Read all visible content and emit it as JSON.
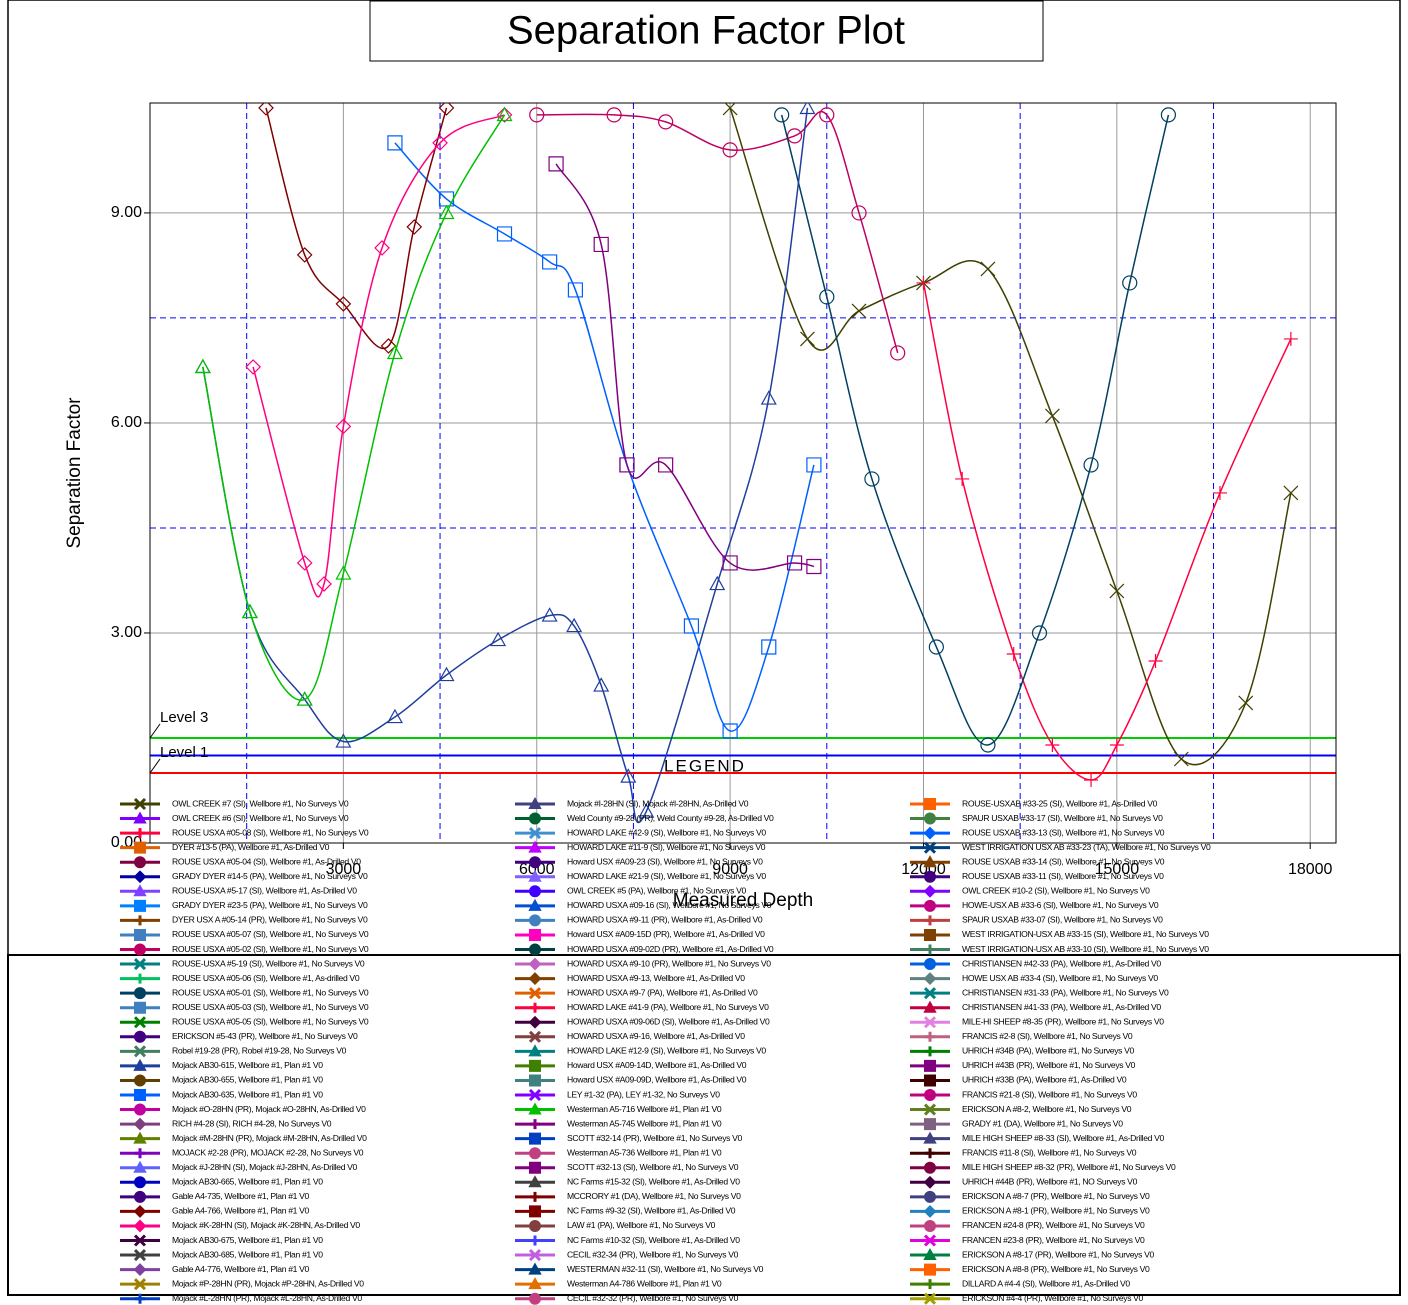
{
  "chart_data": {
    "type": "line",
    "title": "Separation Factor Plot",
    "xlabel": "Measured Depth",
    "ylabel": "Separation Factor",
    "legend_title": "LEGEND",
    "xlim": [
      0,
      18400
    ],
    "ylim": [
      0,
      10.57
    ],
    "xticks": [
      3000,
      6000,
      9000,
      12000,
      15000,
      18000
    ],
    "minor_xticks": [
      1500,
      4500,
      7500,
      10500,
      13500,
      16500
    ],
    "yticks": [
      {
        "value": 0,
        "label": "0.00"
      },
      {
        "value": 3,
        "label": "3.00"
      },
      {
        "value": 6,
        "label": "6.00"
      },
      {
        "value": 9,
        "label": "9.00"
      }
    ],
    "grid": true,
    "hlines": [
      {
        "value": 7.5,
        "color": "#0000ff",
        "dashed": true
      },
      {
        "value": 4.5,
        "color": "#0000ff",
        "dashed": true
      },
      {
        "value": 1.25,
        "color": "#0000ff",
        "dashed": false
      }
    ],
    "levels": [
      {
        "name": "Level 3",
        "value": 1.5,
        "color": "#00cc00"
      },
      {
        "name": "Level 1",
        "value": 1,
        "color": "#ff0000"
      }
    ],
    "series": [
      {
        "name": "OWL CREEK #7 (SI), Wellbore #1, No Surveys V0",
        "color": "#404000",
        "marker": "x",
        "x": [
          9000,
          10200,
          11000,
          12000,
          13000,
          14000,
          15000,
          16000,
          17000,
          17700
        ],
        "values": [
          10.5,
          7.2,
          7.6,
          8.0,
          8.2,
          6.1,
          3.6,
          1.2,
          2.0,
          5.0
        ]
      },
      {
        "name": "OWL CREEK #6 (SI), Wellbore #1, No Surveys V0",
        "color": "#8000ff",
        "marker": "triangle"
      },
      {
        "name": "ROUSE USXA #05-08 (SI), Wellbore #1, No Surveys V0",
        "color": "#ff0040",
        "marker": "plus",
        "x": [
          12000,
          12600,
          13400,
          14000,
          14600,
          15000,
          15600,
          16600,
          17700
        ],
        "values": [
          8.0,
          5.2,
          2.7,
          1.4,
          0.9,
          1.4,
          2.6,
          5.0,
          7.2
        ]
      },
      {
        "name": "DYER #13-5 (PA), Wellbore #1, As-Drilled V0",
        "color": "#e06000",
        "marker": "square"
      },
      {
        "name": "ROUSE USXA #05-04 (SI), Wellbore #1, As-Drilled V0",
        "color": "#800040",
        "marker": "circle"
      },
      {
        "name": "GRADY DYER #14-5 (PA), Wellbore #1, No Surveys V0",
        "color": "#0000a0",
        "marker": "diamond"
      },
      {
        "name": "ROUSE-USXA #5-17 (SI), Wellbore #1, As-Drilled V0",
        "color": "#8040ff",
        "marker": "triangle"
      },
      {
        "name": "GRADY DYER #23-5 (PA), Wellbore #1, No Surveys V0",
        "color": "#0080ff",
        "marker": "square"
      },
      {
        "name": "DYER USX A #05-14 (PR), Wellbore #1, No Surveys V0",
        "color": "#804000",
        "marker": "plus"
      },
      {
        "name": "ROUSE USXA #05-07 (SI), Wellbore #1, No Surveys V0",
        "color": "#4080c0",
        "marker": "square"
      },
      {
        "name": "ROUSE USXA #05-02 (SI), Wellbore #1, No Surveys V0",
        "color": "#c00060",
        "marker": "circle",
        "x": [
          6000,
          7200,
          8000,
          9000,
          10000,
          10500,
          11000,
          11600
        ],
        "values": [
          10.4,
          10.4,
          10.3,
          9.9,
          10.1,
          10.4,
          9.0,
          7.0
        ]
      },
      {
        "name": "ROUSE-USXA #5-19 (SI), Wellbore #1, No Surveys V0",
        "color": "#008080",
        "marker": "x"
      },
      {
        "name": "ROUSE USXA #05-06 (SI), Wellbore #1, As-drilled V0",
        "color": "#00c060",
        "marker": "plus"
      },
      {
        "name": "ROUSE USXA #05-01 (SI), Wellbore #1, No Surveys V0",
        "color": "#004060",
        "marker": "circle",
        "x": [
          9800,
          10500,
          11200,
          12200,
          13000,
          13800,
          14600,
          15200,
          15800
        ],
        "values": [
          10.4,
          7.8,
          5.2,
          2.8,
          1.4,
          3.0,
          5.4,
          8.0,
          10.4
        ]
      },
      {
        "name": "ROUSE USXA #05-03 (SI), Wellbore #1, No Surveys V0",
        "color": "#4080c0",
        "marker": "square"
      },
      {
        "name": "ROUSE USXA #05-05 (SI), Wellbore #1, No Surveys V0",
        "color": "#008000",
        "marker": "x"
      },
      {
        "name": "ERICKSON #5-43 (PR), Wellbore #1, No Surveys V0",
        "color": "#400080",
        "marker": "circle"
      },
      {
        "name": "Robel #19-28 (PR), Robel #19-28, No Surveys V0",
        "color": "#408060",
        "marker": "x"
      },
      {
        "name": "Mojack AB30-615, Wellbore #1, Plan #1 V0",
        "color": "#1f3f9f",
        "marker": "triangle",
        "x": [
          820,
          1550,
          2400,
          3000,
          3800,
          4600,
          5400,
          6200,
          6580,
          7000,
          7420,
          7700,
          8800,
          9600,
          10200
        ],
        "values": [
          6.8,
          3.3,
          2.05,
          1.45,
          1.8,
          2.4,
          2.9,
          3.25,
          3.1,
          2.25,
          0.95,
          0.45,
          3.7,
          6.35,
          10.5
        ]
      },
      {
        "name": "Mojack AB30-655, Wellbore #1, Plan #1 V0",
        "color": "#604000",
        "marker": "circle"
      },
      {
        "name": "Mojack AB30-635, Wellbore #1, Plan #1 V0",
        "color": "#0060ff",
        "marker": "square",
        "x": [
          3800,
          4600,
          5500,
          6200,
          6600,
          7400,
          8400,
          9000,
          9600,
          10300
        ],
        "values": [
          10.0,
          9.2,
          8.7,
          8.3,
          7.9,
          5.4,
          3.1,
          1.6,
          2.8,
          5.4
        ]
      },
      {
        "name": "Mojack #O-28HN (PR), Mojack #O-28HN, As-Drilled V0",
        "color": "#c000a0",
        "marker": "circle"
      },
      {
        "name": "RICH #4-28 (SI), RICH #4-28, No Surveys V0",
        "color": "#804080",
        "marker": "diamond"
      },
      {
        "name": "Mojack #M-28HN (PR), Mojack #M-28HN, As-Drilled V0",
        "color": "#608000",
        "marker": "triangle"
      },
      {
        "name": "MOJACK #2-28 (PR), MOJACK #2-28, No Surveys V0",
        "color": "#8000c0",
        "marker": "plus"
      },
      {
        "name": "Mojack #J-28HN (SI), Mojack #J-28HN, As-Drilled V0",
        "color": "#6060ff",
        "marker": "triangle"
      },
      {
        "name": "Mojack AB30-665, Wellbore #1, Plan #1 V0",
        "color": "#0000c0",
        "marker": "circle"
      },
      {
        "name": "Gable A4-735, Wellbore #1, Plan #1 V0",
        "color": "#400080",
        "marker": "circle"
      },
      {
        "name": "Gable A4-766, Wellbore #1, Plan #1 V0",
        "color": "#800000",
        "marker": "diamond",
        "x": [
          1800,
          2400,
          3000,
          3700,
          4100,
          4600
        ],
        "values": [
          10.5,
          8.4,
          7.7,
          7.1,
          8.8,
          10.5
        ]
      },
      {
        "name": "Mojack #K-28HN (SI), Mojack #K-28HN, As-Drilled V0",
        "color": "#ff0080",
        "marker": "diamond",
        "x": [
          1600,
          2400,
          2700,
          3000,
          3600,
          4500,
          5500
        ],
        "values": [
          6.8,
          4.0,
          3.7,
          5.95,
          8.5,
          10.0,
          10.4
        ]
      },
      {
        "name": "Mojack AB30-675, Wellbore #1, Plan #1 V0",
        "color": "#400040",
        "marker": "x"
      },
      {
        "name": "Mojack AB30-685, Wellbore #1, Plan #1 V0",
        "color": "#404040",
        "marker": "x"
      },
      {
        "name": "Gable A4-776, Wellbore #1, Plan #1 V0",
        "color": "#8040a0",
        "marker": "diamond"
      },
      {
        "name": "Mojack #P-28HN (PR), Mojack #P-28HN, As-Drilled V0",
        "color": "#a08000",
        "marker": "x"
      },
      {
        "name": "Mojack #L-28HN (PR), Mojack #L-28HN, As-Drilled V0",
        "color": "#0040c0",
        "marker": "plus"
      },
      {
        "name": "Mojack #I-28HN (SI), Mojack #I-28HN, As-Drilled V0",
        "color": "#404080",
        "marker": "triangle"
      },
      {
        "name": "Weld County #9-28 (PR), Weld County #9-28, As-Drilled V0",
        "color": "#006030",
        "marker": "circle"
      },
      {
        "name": "HOWARD LAKE #42-9 (SI), Wellbore #1, No Surveys V0",
        "color": "#4090d0",
        "marker": "x"
      },
      {
        "name": "HOWARD LAKE #11-9 (SI), Wellbore #1, No Surveys V0",
        "color": "#c000ff",
        "marker": "triangle"
      },
      {
        "name": "Howard USX #A09-23 (SI), Wellbore #1, No Surveys V0",
        "color": "#400080",
        "marker": "circle"
      },
      {
        "name": "HOWARD LAKE #21-9 (SI), Wellbore #1, No Surveys V0",
        "color": "#8060ff",
        "marker": "triangle"
      },
      {
        "name": "OWL CREEK #5 (PA), Wellbore #1, No Surveys V0",
        "color": "#4000ff",
        "marker": "circle"
      },
      {
        "name": "HOWARD USXA #09-16 (SI), Wellbore #1, No Surveys V0",
        "color": "#0050d0",
        "marker": "triangle"
      },
      {
        "name": "HOWARD USXA #9-11 (PR), Wellbore #1, As-Drilled V0",
        "color": "#4080c0",
        "marker": "circle"
      },
      {
        "name": "Howard USX #A09-15D (PR), Wellbore #1, As-Drilled V0",
        "color": "#ff00c0",
        "marker": "square"
      },
      {
        "name": "HOWARD USXA #09-02D (PR), Wellbore #1, As-Drilled V0",
        "color": "#004040",
        "marker": "circle"
      },
      {
        "name": "HOWARD USXA #9-10 (PR), Wellbore #1, No Surveys V0",
        "color": "#c060c0",
        "marker": "diamond"
      },
      {
        "name": "HOWARD USXA #9-13, Wellbore #1, As-Drilled V0",
        "color": "#804000",
        "marker": "diamond"
      },
      {
        "name": "HOWARD USXA #9-7 (PA), Wellbore #1, As-Drilled V0",
        "color": "#e06000",
        "marker": "x"
      },
      {
        "name": "HOWARD LAKE #41-9 (PA), Wellbore #1, No Surveys V0",
        "color": "#ff0040",
        "marker": "plus"
      },
      {
        "name": "HOWARD USXA #09-06D (SI), Wellbore #1, As-Drilled V0",
        "color": "#400040",
        "marker": "diamond"
      },
      {
        "name": "HOWARD USXA #9-16, Wellbore #1, As-Drilled V0",
        "color": "#804040",
        "marker": "x"
      },
      {
        "name": "HOWARD LAKE #12-9 (SI), Wellbore #1, No Surveys V0",
        "color": "#008080",
        "marker": "triangle"
      },
      {
        "name": "Howard USX #A09-14D, Wellbore #1, As-Drilled V0",
        "color": "#408000",
        "marker": "square"
      },
      {
        "name": "Howard USX #A09-09D, Wellbore #1, As-Drilled V0",
        "color": "#408080",
        "marker": "square"
      },
      {
        "name": "LEY #1-32 (PA), LEY #1-32, No Surveys V0",
        "color": "#8000ff",
        "marker": "x"
      },
      {
        "name": "Westerman A5-716 Wellbore #1, Plan #1 V0",
        "color": "#00c000",
        "marker": "triangle",
        "x": [
          820,
          1550,
          2400,
          3000,
          3800,
          4600,
          5500
        ],
        "values": [
          6.8,
          3.3,
          2.05,
          3.85,
          7.0,
          9.0,
          10.4
        ]
      },
      {
        "name": "Westerman A5-745 Wellbore #1, Plan #1 V0",
        "color": "#800080",
        "marker": "plus"
      },
      {
        "name": "SCOTT #32-14 (PR), Wellbore #1, No Surveys V0",
        "color": "#0040c0",
        "marker": "square"
      },
      {
        "name": "Westerman A5-736 Wellbore #1, Plan #1 V0",
        "color": "#c04080",
        "marker": "circle"
      },
      {
        "name": "SCOTT #32-13 (SI), Wellbore #1, No Surveys V0",
        "color": "#800080",
        "marker": "square",
        "x": [
          6300,
          7000,
          7400,
          8000,
          9000,
          10000,
          10300
        ],
        "values": [
          9.7,
          8.55,
          5.4,
          5.4,
          4.0,
          4.0,
          3.95
        ]
      },
      {
        "name": "NC Farms #15-32 (SI), Wellbore #1, As-Drilled V0",
        "color": "#404040",
        "marker": "triangle"
      },
      {
        "name": "MCCRORY #1 (DA), Wellbore #1, No Surveys V0",
        "color": "#800000",
        "marker": "plus"
      },
      {
        "name": "NC Farms #9-32 (SI), Wellbore #1, As-Drilled V0",
        "color": "#800000",
        "marker": "square"
      },
      {
        "name": "LAW #1 (PA), Wellbore #1, No Surveys V0",
        "color": "#804040",
        "marker": "circle"
      },
      {
        "name": "NC Farms #10-32 (SI), Wellbore #1, As-Drilled V0",
        "color": "#4040ff",
        "marker": "plus"
      },
      {
        "name": "CECIL #32-34 (PR), Wellbore #1, No Surveys V0",
        "color": "#c060e0",
        "marker": "x"
      },
      {
        "name": "WESTERMAN #32-11 (SI), Wellbore #1, No Surveys V0",
        "color": "#004080",
        "marker": "triangle"
      },
      {
        "name": "Westerman A4-786 Wellbore #1, Plan #1 V0",
        "color": "#e07000",
        "marker": "triangle"
      },
      {
        "name": "CECIL #32-32 (PR), Wellbore #1, No Surveys V0",
        "color": "#c04080",
        "marker": "circle"
      },
      {
        "name": "ROUSE-USXAB #33-25 (SI), Wellbore #1, As-Drilled V0",
        "color": "#ff6000",
        "marker": "square"
      },
      {
        "name": "SPAUR USXAB #33-17 (SI), Wellbore #1, No Surveys V0",
        "color": "#408040",
        "marker": "circle"
      },
      {
        "name": "ROUSE USXAB #33-13 (SI), Wellbore #1, No Surveys V0",
        "color": "#0060ff",
        "marker": "diamond"
      },
      {
        "name": "WEST IRRIGATION USX AB #33-23 (TA), Wellbore #1, No Surveys V0",
        "color": "#004080",
        "marker": "x"
      },
      {
        "name": "ROUSE USXAB #33-14 (SI), Wellbore #1, No Surveys V0",
        "color": "#804000",
        "marker": "triangle"
      },
      {
        "name": "ROUSE USXAB #33-11 (SI), Wellbore #1, No Surveys V0",
        "color": "#400080",
        "marker": "circle"
      },
      {
        "name": "OWL CREEK #10-2 (SI), Wellbore #1, No Surveys V0",
        "color": "#8000ff",
        "marker": "diamond"
      },
      {
        "name": "HOWE-USX AB #33-6 (SI), Wellbore #1, No Surveys V0",
        "color": "#c00080",
        "marker": "circle"
      },
      {
        "name": "SPAUR USXAB #33-07 (SI), Wellbore #1, No Surveys V0",
        "color": "#c04040",
        "marker": "plus"
      },
      {
        "name": "WEST IRRIGATION-USX AB #33-15 (SI), Wellbore #1, No Surveys V0",
        "color": "#804000",
        "marker": "square"
      },
      {
        "name": "WEST IRRIGATION-USX AB #33-10 (SI), Wellbore #1, No Surveys V0",
        "color": "#408060",
        "marker": "plus"
      },
      {
        "name": "CHRISTIANSEN #42-33 (PA), Wellbore #1, As-Drilled V0",
        "color": "#0060e0",
        "marker": "circle"
      },
      {
        "name": "HOWE USX AB #33-4 (SI), Wellbore #1, No Surveys V0",
        "color": "#608080",
        "marker": "diamond"
      },
      {
        "name": "CHRISTIANSEN #31-33 (PA), Wellbore #1, No Surveys V0",
        "color": "#008080",
        "marker": "x"
      },
      {
        "name": "CHRISTIANSEN #41-33 (PA), Wellbore #1, As-Drilled V0",
        "color": "#c00040",
        "marker": "triangle"
      },
      {
        "name": "MILE-HI SHEEP #8-35 (PR), Wellbore #1, No Surveys V0",
        "color": "#e080e0",
        "marker": "x"
      },
      {
        "name": "FRANCIS #2-8 (SI), Wellbore #1, No Surveys V0",
        "color": "#c06080",
        "marker": "plus"
      },
      {
        "name": "UHRICH #34B (PA), Wellbore #1, No Surveys V0",
        "color": "#008000",
        "marker": "plus"
      },
      {
        "name": "UHRICH #43B (PR), Wellbore #1, No Surveys V0",
        "color": "#800080",
        "marker": "square"
      },
      {
        "name": "UHRICH #33B (PA), Wellbore #1, As-Drilled V0",
        "color": "#400000",
        "marker": "square"
      },
      {
        "name": "FRANCIS #21-8 (SI), Wellbore #1, No Surveys V0",
        "color": "#c00080",
        "marker": "circle"
      },
      {
        "name": "ERICKSON A #8-2, Wellbore #1, No Surveys V0",
        "color": "#608020",
        "marker": "x"
      },
      {
        "name": "GRADY #1 (DA), Wellbore #1, No Surveys V0",
        "color": "#806080",
        "marker": "square"
      },
      {
        "name": "MILE HIGH SHEEP #8-33 (SI), Wellbore #1, As-Drilled V0",
        "color": "#404080",
        "marker": "triangle"
      },
      {
        "name": "FRANCIS #11-8 (SI), Wellbore #1, No Surveys V0",
        "color": "#400000",
        "marker": "plus"
      },
      {
        "name": "MILE HIGH SHEEP #8-32 (PR), Wellbore #1, No Surveys V0",
        "color": "#800040",
        "marker": "circle"
      },
      {
        "name": "UHRICH #44B (PR), Wellbore #1, NO Surveys V0",
        "color": "#400040",
        "marker": "diamond"
      },
      {
        "name": "ERICKSON A #8-7 (PR), Wellbore #1, No Surveys V0",
        "color": "#404080",
        "marker": "circle"
      },
      {
        "name": "ERICKSON A #8-1 (PR), Wellbore #1, No Surveys V0",
        "color": "#2080c0",
        "marker": "diamond"
      },
      {
        "name": "FRANCEN #24-8 (PR), Wellbore #1, No Surveys V0",
        "color": "#c04080",
        "marker": "circle"
      },
      {
        "name": "FRANCEN #23-8 (PR), Wellbore #1, No Surveys V0",
        "color": "#e000e0",
        "marker": "x"
      },
      {
        "name": "ERICKSON A #8-17 (PR), Wellbore #1, No Surveys V0",
        "color": "#008040",
        "marker": "triangle"
      },
      {
        "name": "ERICKSON A #8-8 (PR), Wellbore #1, No Surveys V0",
        "color": "#ff6000",
        "marker": "square"
      },
      {
        "name": "DILLARD A #4-4 (SI), Wellbore #1, As-Drilled V0",
        "color": "#408000",
        "marker": "plus"
      },
      {
        "name": "ERICKSON #4-4 (PR), Wellbore #1, No Surveys V0",
        "color": "#a0a000",
        "marker": "x"
      }
    ]
  }
}
